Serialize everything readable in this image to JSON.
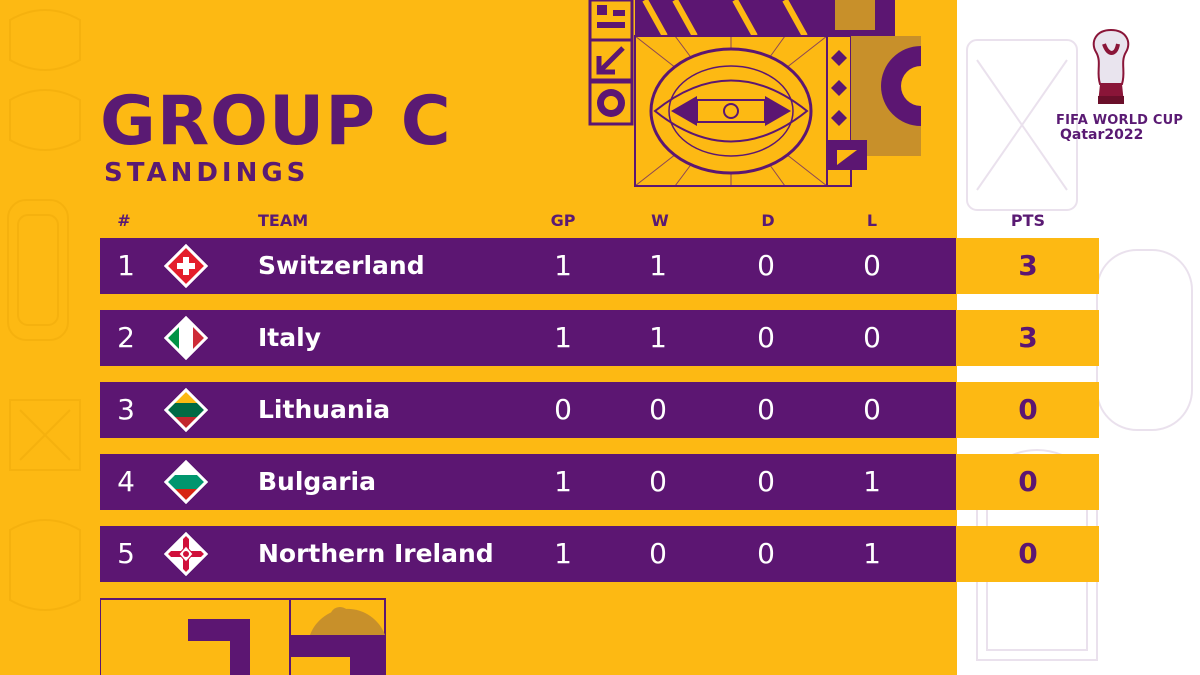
{
  "title": "GROUP C",
  "subtitle": "STANDINGS",
  "headers": {
    "rank": "#",
    "team": "TEAM",
    "gp": "GP",
    "w": "W",
    "d": "D",
    "l": "L",
    "pts": "PTS"
  },
  "rows": [
    {
      "rank": "1",
      "team": "Switzerland",
      "flag": "switzerland-flag-icon",
      "gp": "1",
      "w": "1",
      "d": "0",
      "l": "0",
      "pts": "3"
    },
    {
      "rank": "2",
      "team": "Italy",
      "flag": "italy-flag-icon",
      "gp": "1",
      "w": "1",
      "d": "0",
      "l": "0",
      "pts": "3"
    },
    {
      "rank": "3",
      "team": "Lithuania",
      "flag": "lithuania-flag-icon",
      "gp": "0",
      "w": "0",
      "d": "0",
      "l": "0",
      "pts": "0"
    },
    {
      "rank": "4",
      "team": "Bulgaria",
      "flag": "bulgaria-flag-icon",
      "gp": "1",
      "w": "0",
      "d": "0",
      "l": "1",
      "pts": "0"
    },
    {
      "rank": "5",
      "team": "Northern Ireland",
      "flag": "northern-ireland-flag-icon",
      "gp": "1",
      "w": "0",
      "d": "0",
      "l": "1",
      "pts": "0"
    }
  ],
  "logo": {
    "line1": "FIFA WORLD CUP",
    "line2": "Qatar2022"
  },
  "colors": {
    "gold": "#fdb913",
    "purple": "#5c1672",
    "white": "#ffffff"
  }
}
